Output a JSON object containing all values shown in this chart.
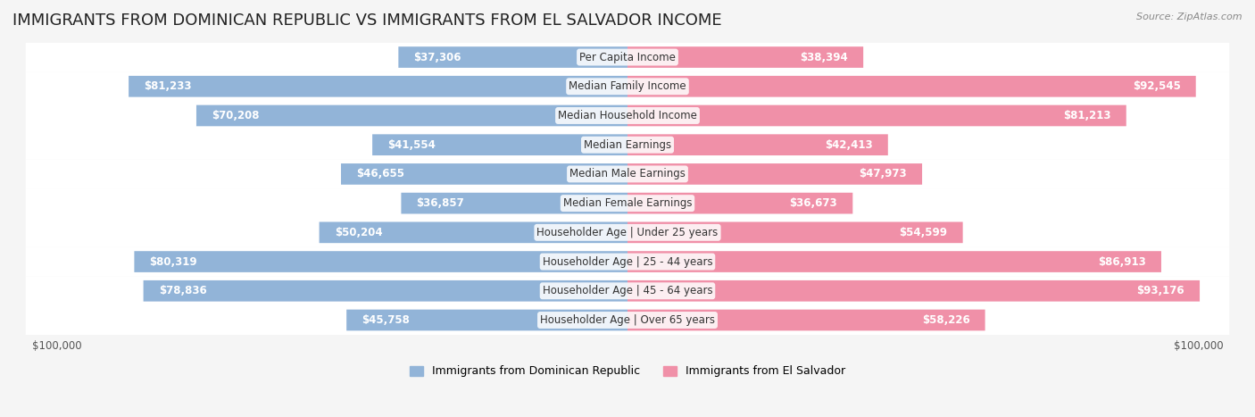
{
  "title": "IMMIGRANTS FROM DOMINICAN REPUBLIC VS IMMIGRANTS FROM EL SALVADOR INCOME",
  "source": "Source: ZipAtlas.com",
  "categories": [
    "Per Capita Income",
    "Median Family Income",
    "Median Household Income",
    "Median Earnings",
    "Median Male Earnings",
    "Median Female Earnings",
    "Householder Age | Under 25 years",
    "Householder Age | 25 - 44 years",
    "Householder Age | 45 - 64 years",
    "Householder Age | Over 65 years"
  ],
  "dominican_values": [
    37306,
    81233,
    70208,
    41554,
    46655,
    36857,
    50204,
    80319,
    78836,
    45758
  ],
  "salvador_values": [
    38394,
    92545,
    81213,
    42413,
    47973,
    36673,
    54599,
    86913,
    93176,
    58226
  ],
  "dominican_color": "#92b4d8",
  "salvador_color": "#f090a8",
  "dominican_label": "Immigrants from Dominican Republic",
  "salvador_label": "Immigrants from El Salvador",
  "axis_max": 100000,
  "background_color": "#f5f5f5",
  "row_bg_color": "#ffffff",
  "title_fontsize": 13,
  "label_fontsize": 8.5,
  "value_fontsize": 8.5,
  "legend_fontsize": 9
}
